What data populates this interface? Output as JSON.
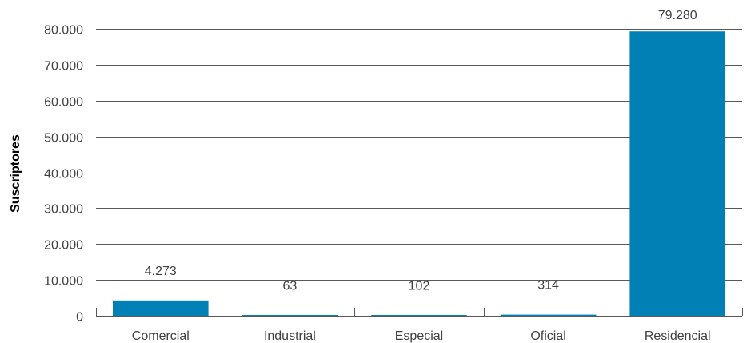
{
  "chart_data": {
    "type": "bar",
    "categories": [
      "Comercial",
      "Industrial",
      "Especial",
      "Oficial",
      "Residencial"
    ],
    "values": [
      4273,
      63,
      102,
      314,
      79280
    ],
    "value_labels": [
      "4.273",
      "63",
      "102",
      "314",
      "79.280"
    ],
    "ylabel": "Suscriptores",
    "ylim": [
      0,
      80000
    ],
    "yticks": [
      0,
      10000,
      20000,
      30000,
      40000,
      50000,
      60000,
      70000,
      80000
    ],
    "ytick_labels": [
      "0",
      "10.000",
      "20.000",
      "30.000",
      "40.000",
      "50.000",
      "60.000",
      "70.000",
      "80.000"
    ],
    "grid": true,
    "bar_color": "#0080b4"
  }
}
